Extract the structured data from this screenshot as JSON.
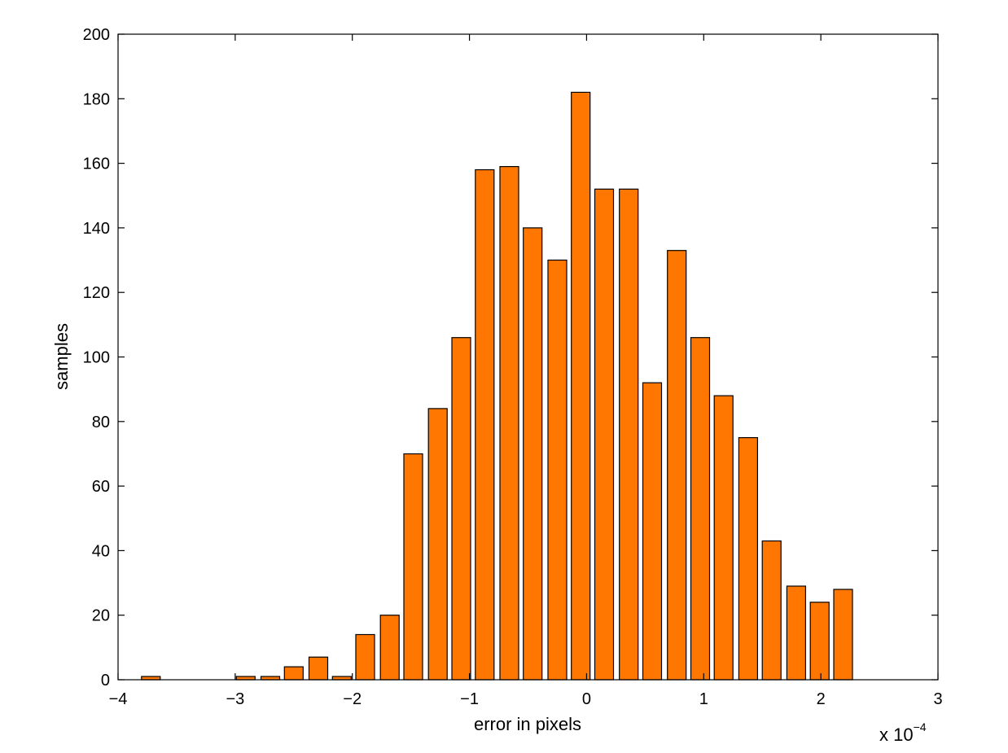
{
  "chart_data": {
    "type": "bar",
    "title": "",
    "xlabel": "error in pixels",
    "ylabel": "samples",
    "x_multiplier_label": "x 10",
    "x_multiplier_exponent": "−4",
    "xlim": [
      -4,
      3
    ],
    "ylim": [
      0,
      200
    ],
    "bar_color": "#ff7700",
    "xticks": [
      -4,
      -3,
      -2,
      -1,
      0,
      1,
      2,
      3
    ],
    "xtick_labels": [
      "−4",
      "−3",
      "−2",
      "−1",
      "0",
      "1",
      "2",
      "3"
    ],
    "yticks": [
      0,
      20,
      40,
      60,
      80,
      100,
      120,
      140,
      160,
      180,
      200
    ],
    "ytick_labels": [
      "0",
      "20",
      "40",
      "60",
      "80",
      "100",
      "120",
      "140",
      "160",
      "180",
      "200"
    ],
    "x": [
      -3.72,
      -3.52,
      -3.31,
      -3.11,
      -2.91,
      -2.7,
      -2.5,
      -2.29,
      -2.09,
      -1.89,
      -1.68,
      -1.48,
      -1.27,
      -1.07,
      -0.87,
      -0.66,
      -0.46,
      -0.25,
      -0.05,
      0.15,
      0.36,
      0.56,
      0.77,
      0.97,
      1.17,
      1.38,
      1.58,
      1.79,
      1.99,
      2.19,
      2.4,
      2.6,
      2.81
    ],
    "values": [
      1,
      0,
      0,
      0,
      1,
      1,
      4,
      7,
      1,
      14,
      20,
      70,
      84,
      106,
      158,
      159,
      140,
      130,
      182,
      152,
      152,
      92,
      133,
      106,
      88,
      75,
      43,
      29,
      24,
      28,
      0,
      0,
      0
    ],
    "grid": false,
    "legend": "none"
  }
}
